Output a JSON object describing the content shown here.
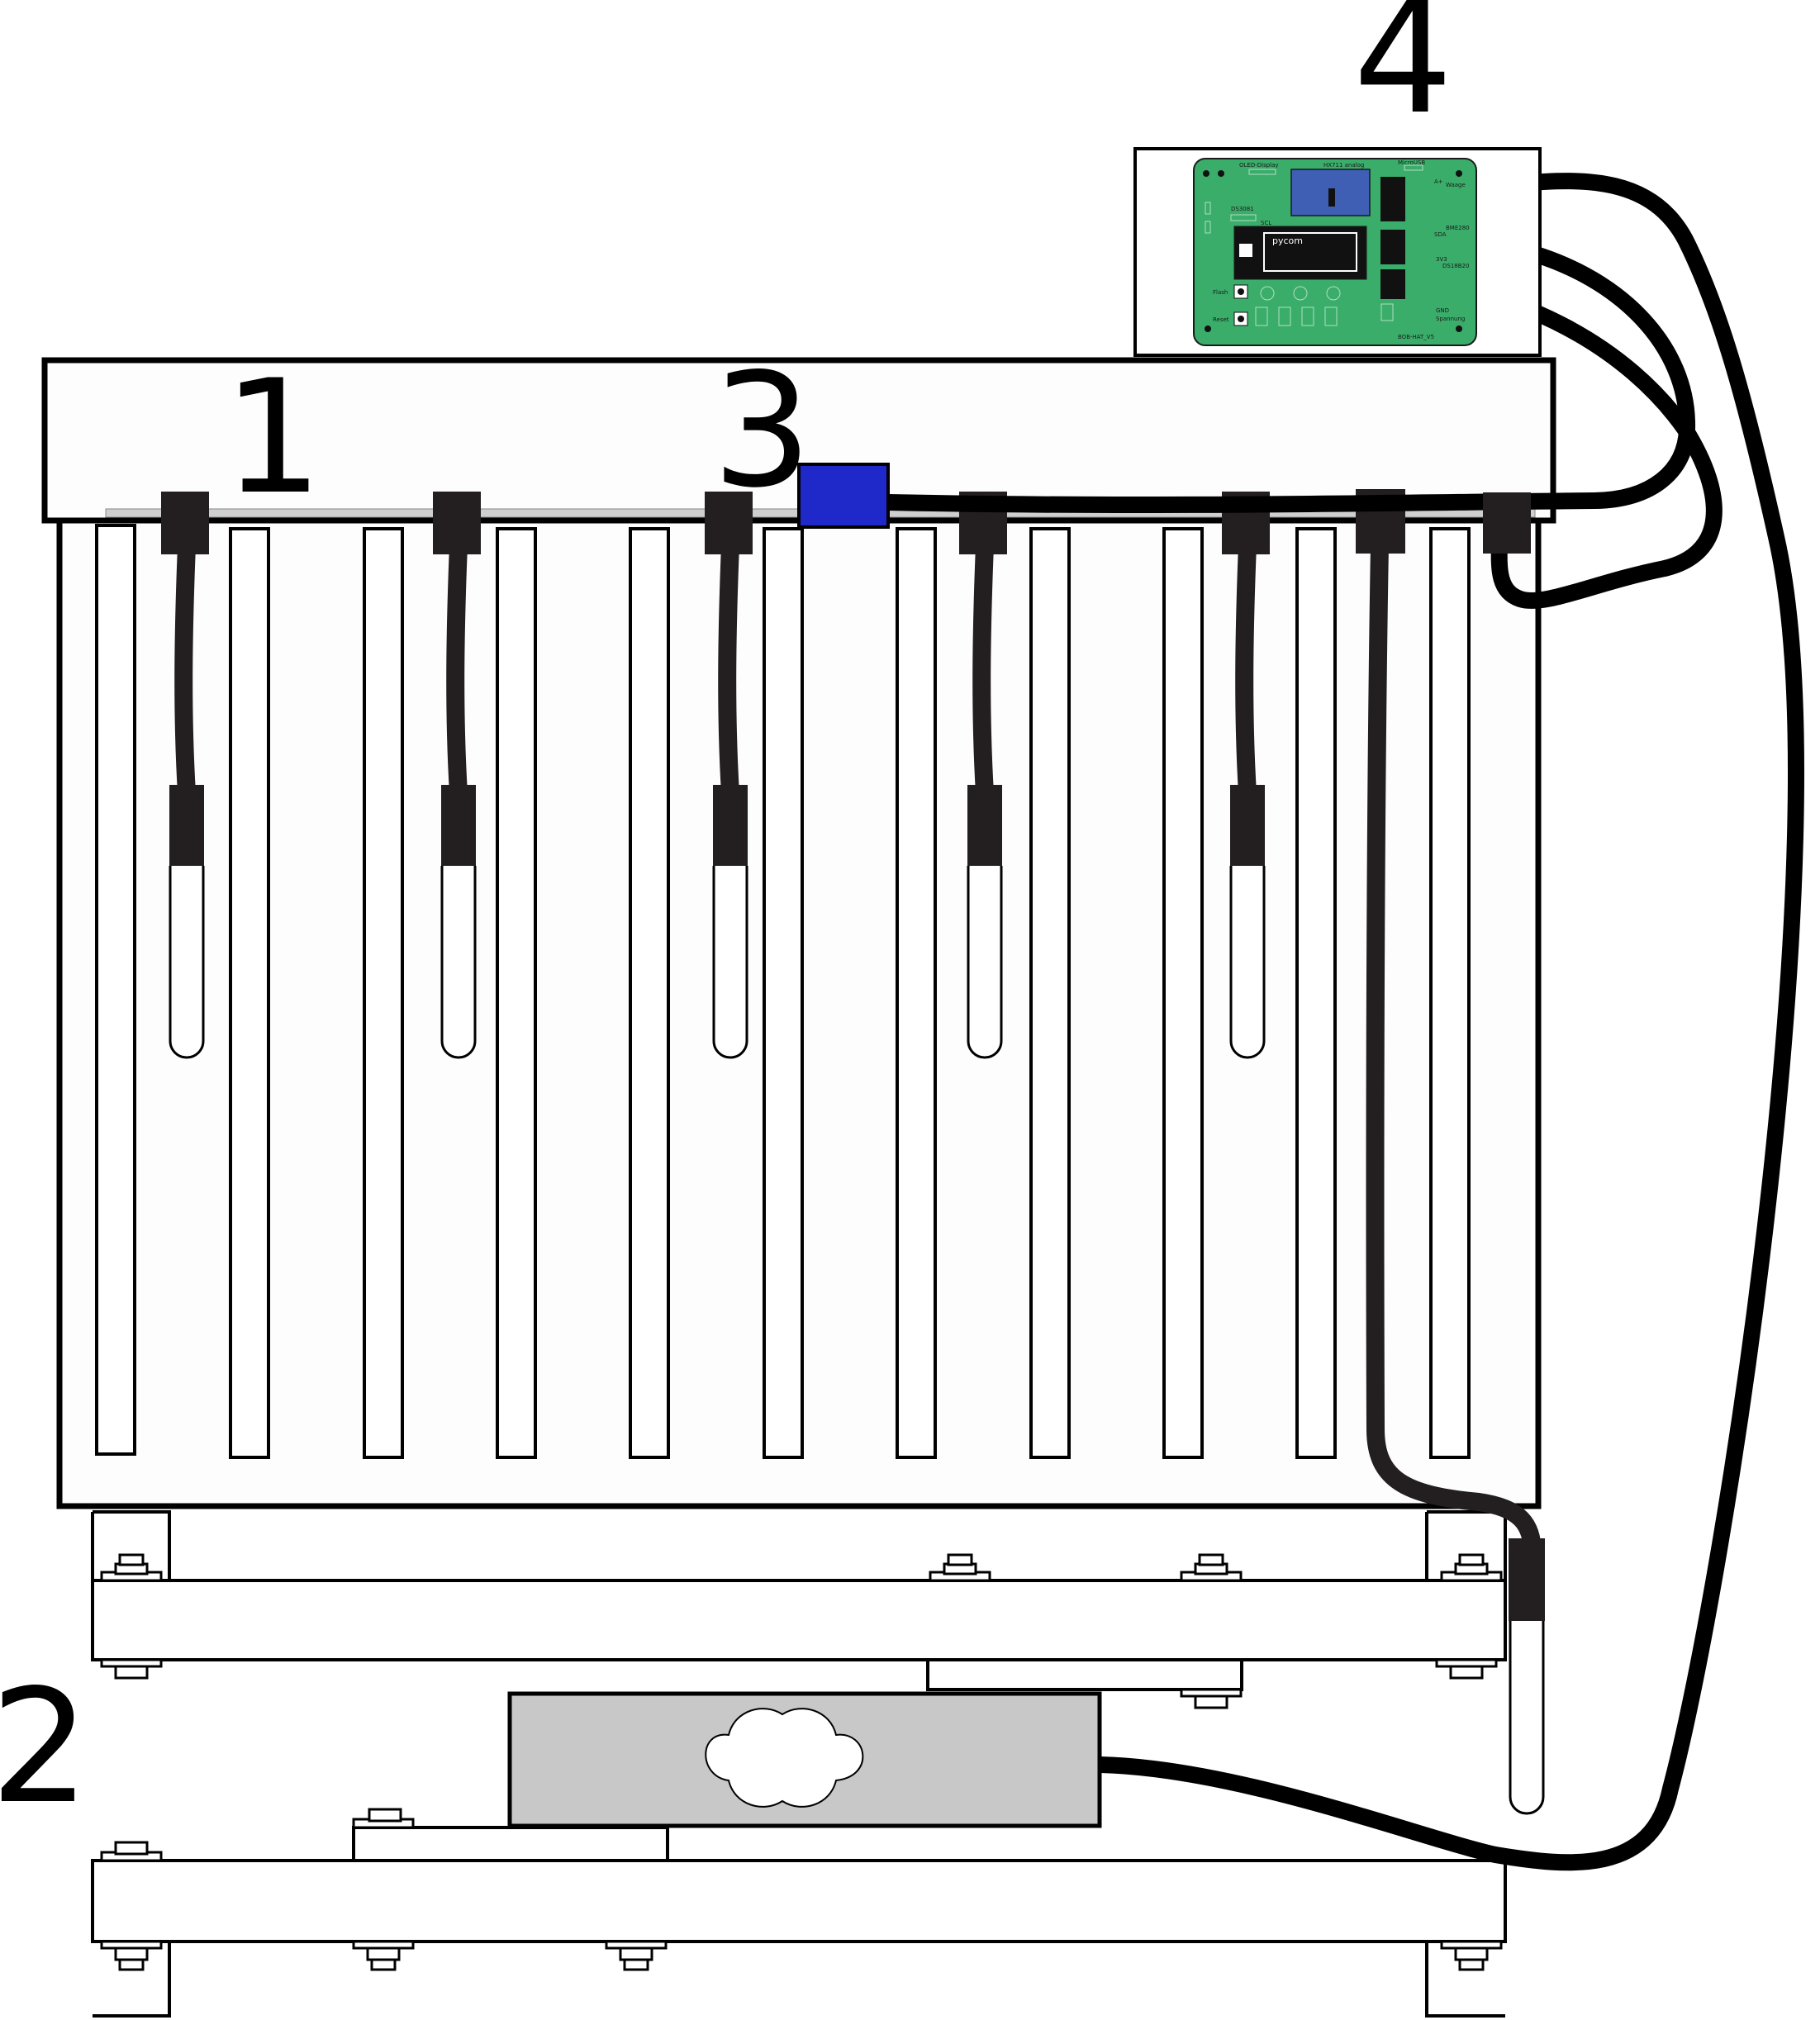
{
  "callouts": {
    "c1": "1",
    "c2": "2",
    "c3": "3",
    "c4": "4"
  },
  "pcb": {
    "oled": "OLED-Display",
    "hx711": "HX711 analog",
    "microusb": "MicroUSB",
    "pycom": "pycom",
    "bme280": "BME280",
    "ds18b20": "DS18B20",
    "spannung": "Spannung",
    "version": "BOB-HAT_V5",
    "ds3081": "DS3081",
    "flash": "Flash",
    "reset": "Reset",
    "waage": "Waage",
    "sda": "SDA",
    "scl": "SCL",
    "gnd": "GND",
    "v33": "3V3",
    "ax": "A+"
  },
  "colors": {
    "pcb_green": "#3aad6a",
    "hx711_blue": "#3f5fb5",
    "connector_blue": "#1f28c9",
    "cable": "#231f20",
    "loadcell": "#c8c8c8"
  }
}
